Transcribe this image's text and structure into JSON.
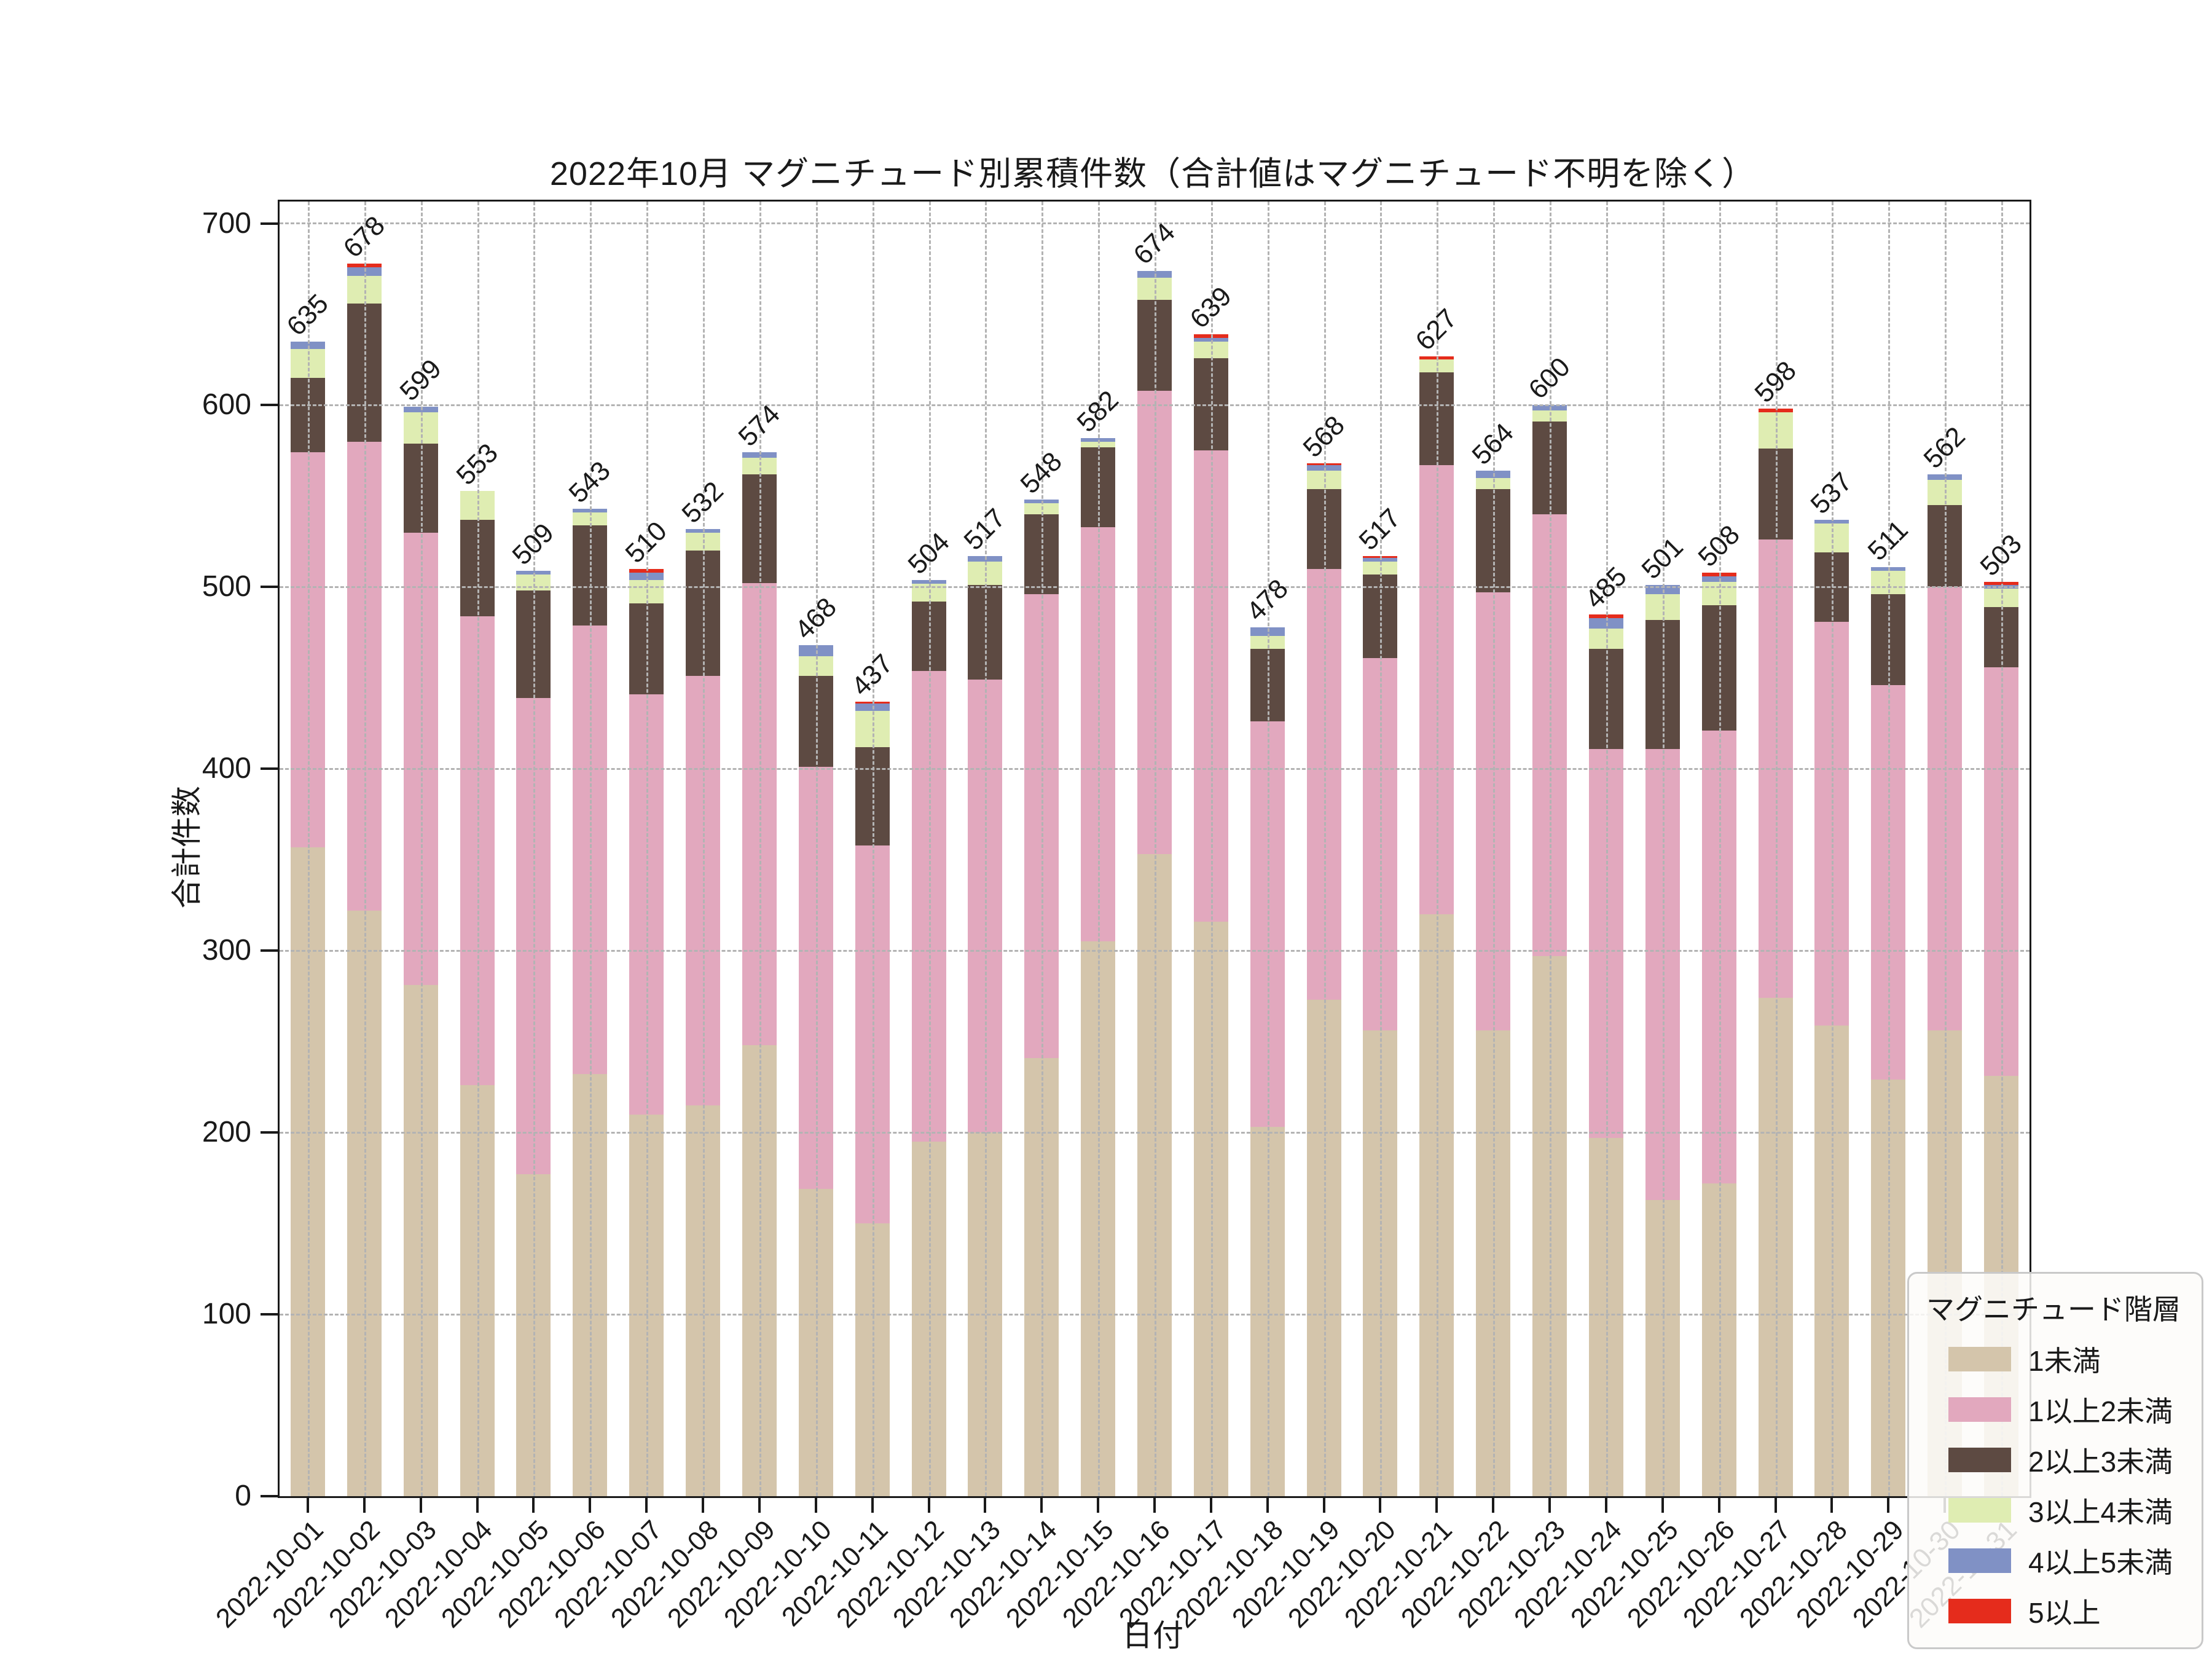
{
  "title": "2022年10月 マグニチュード別累積件数（合計値はマグニチュード不明を除く）",
  "x_axis": {
    "label": "日付",
    "tick_rotation_deg": 45
  },
  "y_axis": {
    "label": "合計件数",
    "ticks": [
      0,
      100,
      200,
      300,
      400,
      500,
      600,
      700
    ]
  },
  "legend": {
    "title": "マグニチュード階層",
    "position": "lower right"
  },
  "chart_data": {
    "type": "bar",
    "stacked": true,
    "title": "2022年10月 マグニチュード別累積件数（合計値はマグニチュード不明を除く）",
    "xlabel": "日付",
    "ylabel": "合計件数",
    "ylim": [
      0,
      712
    ],
    "grid": true,
    "legend_title": "マグニチュード階層",
    "legend_position": "lower right",
    "bar_total_labels": true,
    "categories": [
      "2022-10-01",
      "2022-10-02",
      "2022-10-03",
      "2022-10-04",
      "2022-10-05",
      "2022-10-06",
      "2022-10-07",
      "2022-10-08",
      "2022-10-09",
      "2022-10-10",
      "2022-10-11",
      "2022-10-12",
      "2022-10-13",
      "2022-10-14",
      "2022-10-15",
      "2022-10-16",
      "2022-10-17",
      "2022-10-18",
      "2022-10-19",
      "2022-10-20",
      "2022-10-21",
      "2022-10-22",
      "2022-10-23",
      "2022-10-24",
      "2022-10-25",
      "2022-10-26",
      "2022-10-27",
      "2022-10-28",
      "2022-10-29",
      "2022-10-30",
      "2022-10-31"
    ],
    "totals": [
      635,
      678,
      599,
      553,
      509,
      543,
      510,
      532,
      574,
      468,
      437,
      504,
      517,
      548,
      582,
      674,
      639,
      478,
      568,
      517,
      627,
      564,
      600,
      485,
      501,
      508,
      598,
      537,
      511,
      562,
      503
    ],
    "series": [
      {
        "name": "1未満",
        "color": "#d4c5ab",
        "values": [
          357,
          322,
          281,
          226,
          177,
          232,
          210,
          215,
          248,
          169,
          150,
          195,
          200,
          241,
          305,
          353,
          316,
          203,
          273,
          256,
          320,
          256,
          297,
          197,
          163,
          172,
          274,
          259,
          229,
          256,
          231
        ]
      },
      {
        "name": "1以上2未満",
        "color": "#e2a8be",
        "values": [
          217,
          258,
          249,
          258,
          262,
          247,
          231,
          236,
          254,
          232,
          208,
          259,
          249,
          255,
          228,
          255,
          259,
          223,
          237,
          205,
          247,
          241,
          243,
          214,
          248,
          249,
          252,
          222,
          217,
          244,
          225
        ]
      },
      {
        "name": "2以上3未満",
        "color": "#5d4a42",
        "values": [
          41,
          76,
          49,
          53,
          59,
          55,
          50,
          69,
          60,
          50,
          54,
          38,
          52,
          44,
          44,
          50,
          51,
          40,
          44,
          46,
          51,
          57,
          51,
          55,
          71,
          69,
          50,
          38,
          50,
          45,
          33
        ]
      },
      {
        "name": "3以上4未満",
        "color": "#dfedb2",
        "values": [
          16,
          15,
          17,
          16,
          9,
          7,
          13,
          10,
          9,
          11,
          20,
          10,
          13,
          6,
          3,
          12,
          9,
          7,
          10,
          7,
          7,
          6,
          6,
          11,
          14,
          13,
          20,
          16,
          13,
          14,
          10
        ]
      },
      {
        "name": "4以上5未満",
        "color": "#8091c5",
        "values": [
          4,
          5,
          3,
          0,
          2,
          2,
          4,
          2,
          3,
          6,
          4,
          2,
          3,
          2,
          2,
          4,
          2,
          5,
          3,
          2,
          0,
          4,
          3,
          6,
          5,
          3,
          0,
          2,
          2,
          3,
          2
        ]
      },
      {
        "name": "5以上",
        "color": "#e52c1c",
        "values": [
          0,
          2,
          0,
          0,
          0,
          0,
          2,
          0,
          0,
          0,
          1,
          0,
          0,
          0,
          0,
          0,
          2,
          0,
          1,
          1,
          2,
          0,
          0,
          2,
          0,
          2,
          2,
          0,
          0,
          0,
          2
        ]
      }
    ]
  }
}
